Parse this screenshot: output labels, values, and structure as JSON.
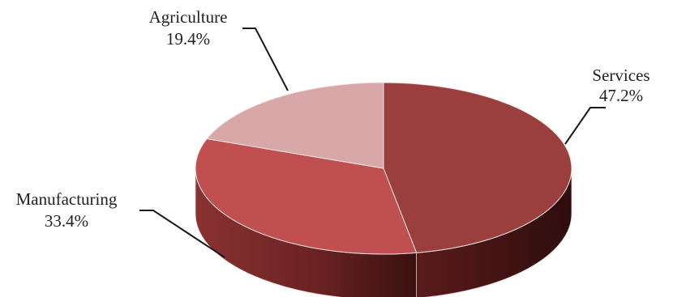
{
  "chart_data": {
    "type": "pie",
    "style": "3d",
    "categories": [
      "Services",
      "Manufacturing",
      "Agriculture"
    ],
    "values": [
      47.2,
      33.4,
      19.4
    ],
    "value_labels": [
      "47.2%",
      "33.4%",
      "19.4%"
    ],
    "colors": {
      "Services": "#9a3e3e",
      "Manufacturing": "#c05050",
      "Agriculture": "#d8a8a8"
    },
    "side_colors": {
      "Services": "#4a1717",
      "Manufacturing": "#7a2a2a",
      "Agriculture": "#a07070"
    },
    "title": "",
    "legend": "none"
  }
}
